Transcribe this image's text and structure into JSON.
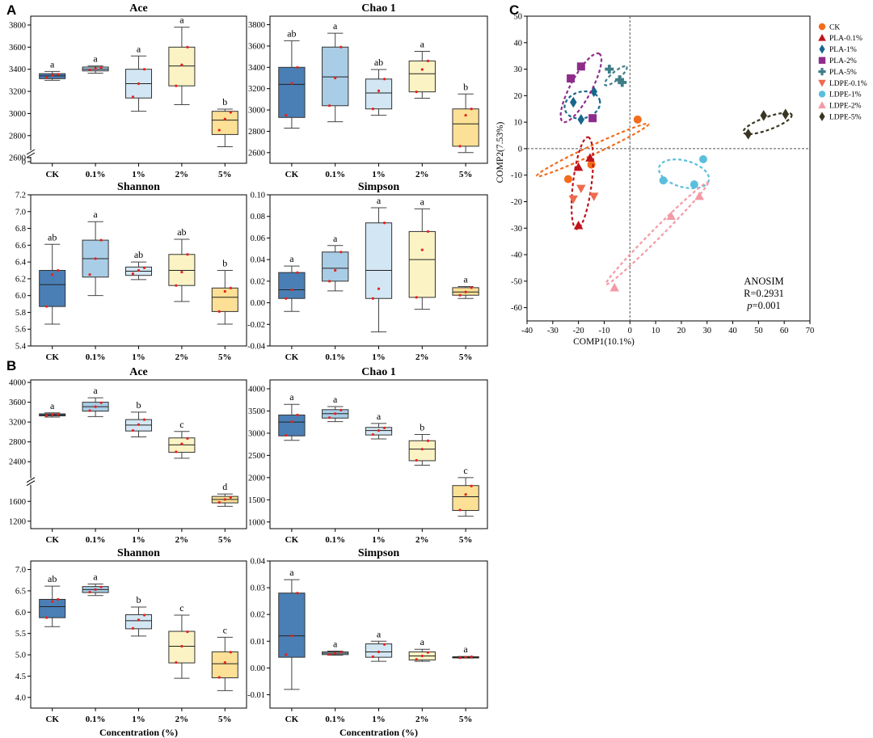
{
  "panel_labels": {
    "A": "A",
    "B": "B",
    "C": "C"
  },
  "box_fill_colors": [
    "#4a7fb5",
    "#a9cde6",
    "#d3e6f3",
    "#fbf3c4",
    "#fbe095"
  ],
  "median_point_color": "#e8211a",
  "chart_data": [
    {
      "type": "box",
      "id": "A-ace",
      "section": "A",
      "title": "Ace",
      "categories": [
        "CK",
        "0.1%",
        "1%",
        "2%",
        "5%"
      ],
      "yticks": [
        "0",
        "2600",
        "2800",
        "3000",
        "3200",
        "3400",
        "3600",
        "3800"
      ],
      "ylim": [
        2550,
        3880
      ],
      "axis_break": true,
      "boxes": [
        {
          "q1": 3315,
          "q3": 3360,
          "median": 3340,
          "wlo": 3300,
          "whi": 3380,
          "points": [
            3325,
            3345,
            3355
          ],
          "letter": "a"
        },
        {
          "q1": 3385,
          "q3": 3420,
          "median": 3400,
          "wlo": 3365,
          "whi": 3430,
          "points": [
            3395,
            3405,
            3415
          ],
          "letter": "a"
        },
        {
          "q1": 3140,
          "q3": 3400,
          "median": 3270,
          "wlo": 3020,
          "whi": 3520,
          "points": [
            3150,
            3270,
            3400
          ],
          "letter": "a"
        },
        {
          "q1": 3250,
          "q3": 3600,
          "median": 3430,
          "wlo": 3080,
          "whi": 3780,
          "points": [
            3250,
            3440,
            3600
          ],
          "letter": "a"
        },
        {
          "q1": 2810,
          "q3": 3020,
          "median": 2940,
          "wlo": 2700,
          "whi": 3040,
          "points": [
            2850,
            2950,
            3010
          ],
          "letter": "b"
        }
      ]
    },
    {
      "type": "box",
      "id": "A-chao",
      "section": "A",
      "title": "Chao 1",
      "categories": [
        "CK",
        "0.1%",
        "1%",
        "2%",
        "5%"
      ],
      "yticks": [
        "2600",
        "2800",
        "3000",
        "3200",
        "3400",
        "3600",
        "3800"
      ],
      "ylim": [
        2500,
        3880
      ],
      "axis_break": false,
      "boxes": [
        {
          "q1": 2930,
          "q3": 3400,
          "median": 3240,
          "wlo": 2830,
          "whi": 3650,
          "points": [
            2950,
            3250,
            3400
          ],
          "letter": "ab"
        },
        {
          "q1": 3040,
          "q3": 3590,
          "median": 3310,
          "wlo": 2890,
          "whi": 3720,
          "points": [
            3040,
            3300,
            3590
          ],
          "letter": "a"
        },
        {
          "q1": 3010,
          "q3": 3290,
          "median": 3160,
          "wlo": 2950,
          "whi": 3380,
          "points": [
            3010,
            3180,
            3290
          ],
          "letter": "ab"
        },
        {
          "q1": 3170,
          "q3": 3460,
          "median": 3340,
          "wlo": 3110,
          "whi": 3550,
          "points": [
            3170,
            3380,
            3460
          ],
          "letter": "a"
        },
        {
          "q1": 2660,
          "q3": 3010,
          "median": 2870,
          "wlo": 2600,
          "whi": 3150,
          "points": [
            2660,
            2950,
            3010
          ],
          "letter": "b"
        }
      ]
    },
    {
      "type": "box",
      "id": "A-shannon",
      "section": "A",
      "title": "Shannon",
      "categories": [
        "CK",
        "0.1%",
        "1%",
        "2%",
        "5%"
      ],
      "yticks": [
        "5.4",
        "5.6",
        "5.8",
        "6.0",
        "6.2",
        "6.4",
        "6.6",
        "6.8",
        "7.0",
        "7.2"
      ],
      "ylim": [
        5.4,
        7.2
      ],
      "axis_break": false,
      "boxes": [
        {
          "q1": 5.87,
          "q3": 6.3,
          "median": 6.13,
          "wlo": 5.66,
          "whi": 6.61,
          "points": [
            5.87,
            6.25,
            6.3
          ],
          "letter": "ab"
        },
        {
          "q1": 6.22,
          "q3": 6.66,
          "median": 6.44,
          "wlo": 6.0,
          "whi": 6.88,
          "points": [
            6.25,
            6.44,
            6.66
          ],
          "letter": "a"
        },
        {
          "q1": 6.24,
          "q3": 6.34,
          "median": 6.29,
          "wlo": 6.19,
          "whi": 6.4,
          "points": [
            6.26,
            6.3,
            6.33
          ],
          "letter": "ab"
        },
        {
          "q1": 6.12,
          "q3": 6.49,
          "median": 6.3,
          "wlo": 5.93,
          "whi": 6.67,
          "points": [
            6.12,
            6.28,
            6.49
          ],
          "letter": "ab"
        },
        {
          "q1": 5.81,
          "q3": 6.09,
          "median": 5.98,
          "wlo": 5.66,
          "whi": 6.3,
          "points": [
            5.81,
            6.05,
            6.09
          ],
          "letter": "b"
        }
      ]
    },
    {
      "type": "box",
      "id": "A-simpson",
      "section": "A",
      "title": "Simpson",
      "categories": [
        "CK",
        "0.1%",
        "1%",
        "2%",
        "5%"
      ],
      "yticks": [
        "-0.04",
        "-0.02",
        "0.00",
        "0.02",
        "0.04",
        "0.06",
        "0.08",
        "0.10"
      ],
      "ylim": [
        -0.04,
        0.1
      ],
      "axis_break": false,
      "boxes": [
        {
          "q1": 0.004,
          "q3": 0.028,
          "median": 0.012,
          "wlo": -0.008,
          "whi": 0.034,
          "points": [
            0.004,
            0.012,
            0.028
          ],
          "letter": "a"
        },
        {
          "q1": 0.02,
          "q3": 0.047,
          "median": 0.032,
          "wlo": 0.011,
          "whi": 0.053,
          "points": [
            0.02,
            0.03,
            0.047
          ],
          "letter": "a"
        },
        {
          "q1": 0.004,
          "q3": 0.074,
          "median": 0.03,
          "wlo": -0.027,
          "whi": 0.088,
          "points": [
            0.004,
            0.013,
            0.074
          ],
          "letter": "a"
        },
        {
          "q1": 0.005,
          "q3": 0.066,
          "median": 0.04,
          "wlo": -0.006,
          "whi": 0.087,
          "points": [
            0.005,
            0.049,
            0.066
          ],
          "letter": "a"
        },
        {
          "q1": 0.007,
          "q3": 0.014,
          "median": 0.01,
          "wlo": 0.004,
          "whi": 0.015,
          "points": [
            0.007,
            0.01,
            0.014
          ],
          "letter": "a"
        }
      ]
    },
    {
      "type": "box",
      "id": "B-ace",
      "section": "B",
      "title": "Ace",
      "categories": [
        "CK",
        "0.1%",
        "1%",
        "2%",
        "5%"
      ],
      "yticks": [
        "1200",
        "1600",
        "2400",
        "2800",
        "3200",
        "3600",
        "4000"
      ],
      "tick_values": [
        1200,
        1600,
        2400,
        2800,
        3200,
        3600,
        4000
      ],
      "ylim": [
        1050,
        4050
      ],
      "axis_break": true,
      "boxes": [
        {
          "q1": 3325,
          "q3": 3365,
          "median": 3345,
          "wlo": 3300,
          "whi": 3385,
          "points": [
            3330,
            3350,
            3360
          ],
          "letter": "a"
        },
        {
          "q1": 3420,
          "q3": 3600,
          "median": 3510,
          "wlo": 3310,
          "whi": 3690,
          "points": [
            3430,
            3510,
            3590
          ],
          "letter": "a"
        },
        {
          "q1": 3020,
          "q3": 3250,
          "median": 3140,
          "wlo": 2900,
          "whi": 3400,
          "points": [
            3030,
            3150,
            3250
          ],
          "letter": "b"
        },
        {
          "q1": 2590,
          "q3": 2880,
          "median": 2740,
          "wlo": 2470,
          "whi": 3010,
          "points": [
            2600,
            2760,
            2870
          ],
          "letter": "c"
        },
        {
          "q1": 1570,
          "q3": 1700,
          "median": 1640,
          "wlo": 1500,
          "whi": 1750,
          "points": [
            1580,
            1640,
            1680
          ],
          "letter": "d"
        }
      ]
    },
    {
      "type": "box",
      "id": "B-chao",
      "section": "B",
      "title": "Chao 1",
      "categories": [
        "CK",
        "0.1%",
        "1%",
        "2%",
        "5%"
      ],
      "yticks": [
        "1000",
        "1500",
        "2000",
        "2500",
        "3000",
        "3500",
        "4000"
      ],
      "ylim": [
        850,
        4200
      ],
      "axis_break": false,
      "boxes": [
        {
          "q1": 2940,
          "q3": 3410,
          "median": 3250,
          "wlo": 2840,
          "whi": 3650,
          "points": [
            2950,
            3260,
            3410
          ],
          "letter": "a"
        },
        {
          "q1": 3340,
          "q3": 3530,
          "median": 3440,
          "wlo": 3260,
          "whi": 3600,
          "points": [
            3350,
            3440,
            3520
          ],
          "letter": "a"
        },
        {
          "q1": 2960,
          "q3": 3130,
          "median": 3060,
          "wlo": 2870,
          "whi": 3220,
          "points": [
            2970,
            3060,
            3120
          ],
          "letter": "a"
        },
        {
          "q1": 2380,
          "q3": 2830,
          "median": 2640,
          "wlo": 2280,
          "whi": 2970,
          "points": [
            2390,
            2640,
            2830
          ],
          "letter": "b"
        },
        {
          "q1": 1260,
          "q3": 1820,
          "median": 1570,
          "wlo": 1130,
          "whi": 2000,
          "points": [
            1270,
            1620,
            1810
          ],
          "letter": "c"
        }
      ]
    },
    {
      "type": "box",
      "id": "B-shannon",
      "section": "B",
      "title": "Shannon",
      "categories": [
        "CK",
        "0.1%",
        "1%",
        "2%",
        "5%"
      ],
      "yticks": [
        "4.0",
        "4.5",
        "5.0",
        "5.5",
        "6.0",
        "6.5",
        "7.0"
      ],
      "ylim": [
        3.75,
        7.2
      ],
      "axis_break": false,
      "xlabel": "Concentration (%)",
      "boxes": [
        {
          "q1": 5.87,
          "q3": 6.3,
          "median": 6.13,
          "wlo": 5.66,
          "whi": 6.61,
          "points": [
            5.87,
            6.25,
            6.3
          ],
          "letter": "ab"
        },
        {
          "q1": 6.46,
          "q3": 6.6,
          "median": 6.53,
          "wlo": 6.39,
          "whi": 6.66,
          "points": [
            6.47,
            6.53,
            6.59
          ],
          "letter": "a"
        },
        {
          "q1": 5.61,
          "q3": 5.94,
          "median": 5.8,
          "wlo": 5.44,
          "whi": 6.12,
          "points": [
            5.62,
            5.82,
            5.93
          ],
          "letter": "b"
        },
        {
          "q1": 4.81,
          "q3": 5.55,
          "median": 5.2,
          "wlo": 4.45,
          "whi": 5.93,
          "points": [
            4.82,
            5.2,
            5.54
          ],
          "letter": "c"
        },
        {
          "q1": 4.46,
          "q3": 5.07,
          "median": 4.79,
          "wlo": 4.16,
          "whi": 5.41,
          "points": [
            4.47,
            4.82,
            5.06
          ],
          "letter": "c"
        }
      ]
    },
    {
      "type": "box",
      "id": "B-simpson",
      "section": "B",
      "title": "Simpson",
      "categories": [
        "CK",
        "0.1%",
        "1%",
        "2%",
        "5%"
      ],
      "yticks": [
        "-0.01",
        "0.00",
        "0.01",
        "0.02",
        "0.03",
        "0.04"
      ],
      "ylim": [
        -0.015,
        0.04
      ],
      "axis_break": false,
      "xlabel": "Concentration (%)",
      "boxes": [
        {
          "q1": 0.004,
          "q3": 0.028,
          "median": 0.012,
          "wlo": -0.008,
          "whi": 0.033,
          "points": [
            0.005,
            0.012,
            0.028
          ],
          "letter": "a"
        },
        {
          "q1": 0.005,
          "q3": 0.006,
          "median": 0.0055,
          "wlo": 0.0048,
          "whi": 0.0063,
          "points": [
            0.0051,
            0.0055,
            0.0059
          ],
          "letter": "a"
        },
        {
          "q1": 0.004,
          "q3": 0.009,
          "median": 0.006,
          "wlo": 0.0025,
          "whi": 0.01,
          "points": [
            0.0042,
            0.006,
            0.0088
          ],
          "letter": "a"
        },
        {
          "q1": 0.003,
          "q3": 0.006,
          "median": 0.0045,
          "wlo": 0.0025,
          "whi": 0.007,
          "points": [
            0.0032,
            0.0045,
            0.0058
          ],
          "letter": "a"
        },
        {
          "q1": 0.0038,
          "q3": 0.0042,
          "median": 0.004,
          "wlo": 0.0037,
          "whi": 0.0043,
          "points": [
            0.0038,
            0.004,
            0.0042
          ],
          "letter": "a"
        }
      ]
    },
    {
      "type": "scatter",
      "id": "C",
      "section": "C",
      "xlabel": "COMP1(10.1%)",
      "ylabel": "COMP2(7.53%)",
      "xlim": [
        -40,
        70
      ],
      "ylim": [
        -65,
        50
      ],
      "xticks": [
        -40,
        -30,
        -20,
        -10,
        0,
        10,
        20,
        30,
        40,
        50,
        60,
        70
      ],
      "yticks": [
        -60,
        -50,
        -40,
        -30,
        -20,
        -10,
        0,
        10,
        20,
        30,
        40,
        50
      ],
      "annotation": {
        "l1": "ANOSIM",
        "l2": "R=0.2931",
        "l3_p": "p",
        "l3_rest": "=0.001"
      },
      "series": [
        {
          "name": "CK",
          "color": "#f36c1b",
          "marker": "circle",
          "points": [
            [
              -24,
              -11.5
            ],
            [
              -15,
              -6
            ],
            [
              3,
              11
            ]
          ],
          "ellipse": {
            "cx": -14.5,
            "cy": -0.5,
            "rx": 24,
            "ry": 1.7,
            "angle": 25
          }
        },
        {
          "name": "PLA-0.1%",
          "color": "#c0131b",
          "marker": "triangle",
          "points": [
            [
              -20,
              -7
            ],
            [
              -15.5,
              -3.5
            ],
            [
              -20,
              -29
            ]
          ],
          "ellipse": {
            "cx": -18.5,
            "cy": -13,
            "rx": 18,
            "ry": 3.5,
            "angle": 83
          }
        },
        {
          "name": "PLA-1%",
          "color": "#17678c",
          "marker": "diamond",
          "points": [
            [
              -22,
              17.5
            ],
            [
              -19,
              11
            ],
            [
              -14,
              21.5
            ]
          ],
          "ellipse": {
            "cx": -18.5,
            "cy": 16.5,
            "rx": 7,
            "ry": 5,
            "angle": 15
          }
        },
        {
          "name": "PLA-2%",
          "color": "#8e2c8b",
          "marker": "square",
          "points": [
            [
              -23,
              26.5
            ],
            [
              -19,
              31
            ],
            [
              -14.5,
              11.5
            ]
          ],
          "ellipse": {
            "cx": -19,
            "cy": 23,
            "rx": 15,
            "ry": 4,
            "angle": 62
          }
        },
        {
          "name": "PLA-5%",
          "color": "#3f7d87",
          "marker": "plus",
          "points": [
            [
              -8,
              30
            ],
            [
              -4,
              26
            ],
            [
              -3,
              25
            ]
          ],
          "ellipse": {
            "cx": -5.5,
            "cy": 27.5,
            "rx": 5.5,
            "ry": 1.5,
            "angle": 40
          }
        },
        {
          "name": "LDPE-0.1%",
          "color": "#ef6a4f",
          "marker": "invtriangle",
          "points": [
            [
              -19,
              -15
            ],
            [
              -22,
              -19
            ],
            [
              -14,
              -18
            ]
          ],
          "ellipse": null
        },
        {
          "name": "LDPE-1%",
          "color": "#5bbfdc",
          "marker": "circle",
          "points": [
            [
              13,
              -12
            ],
            [
              25,
              -13.5
            ],
            [
              28.5,
              -4
            ]
          ],
          "ellipse": {
            "cx": 21,
            "cy": -9.5,
            "rx": 10,
            "ry": 5,
            "angle": -15
          }
        },
        {
          "name": "LDPE-2%",
          "color": "#f49aa5",
          "marker": "triangle",
          "points": [
            [
              -6,
              -52.5
            ],
            [
              16,
              -25.5
            ],
            [
              27,
              -18
            ]
          ],
          "ellipse": {
            "cx": 10.5,
            "cy": -32,
            "rx": 28,
            "ry": 1.8,
            "angle": 45
          }
        },
        {
          "name": "LDPE-5%",
          "color": "#3a3523",
          "marker": "diamond",
          "points": [
            [
              46,
              5.5
            ],
            [
              52,
              12.5
            ],
            [
              60.5,
              13
            ]
          ],
          "ellipse": {
            "cx": 53.5,
            "cy": 9.5,
            "rx": 10,
            "ry": 2.4,
            "angle": 20
          }
        }
      ]
    }
  ]
}
